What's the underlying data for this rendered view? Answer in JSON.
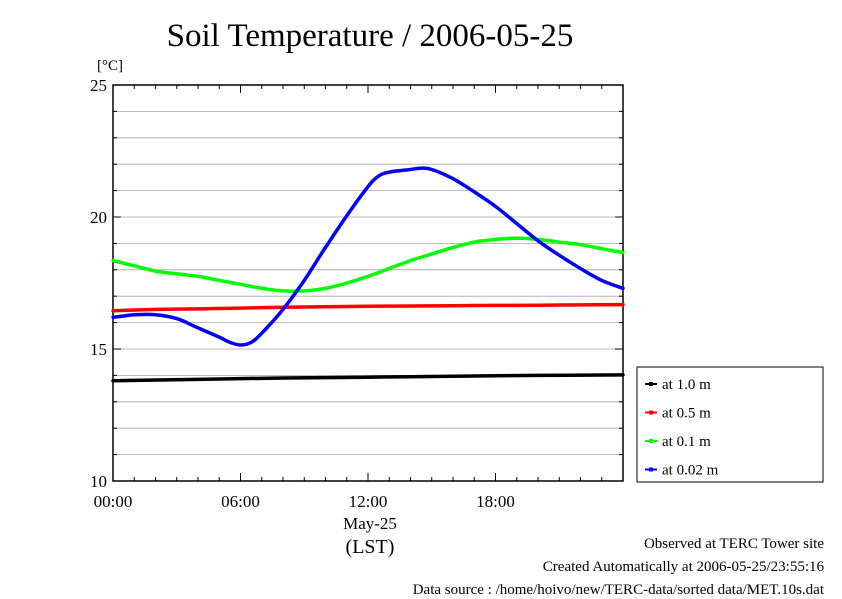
{
  "chart_data": {
    "type": "line",
    "title": "Soil Temperature / 2006-05-25",
    "ylabel": "[°C]",
    "xlabel": "(LST)",
    "x_date_label": "May-25",
    "xlim": [
      0,
      24
    ],
    "ylim": [
      10,
      25
    ],
    "y_ticks": [
      10,
      15,
      20,
      25
    ],
    "y_tick_labels": [
      "10",
      "15",
      "20",
      "25"
    ],
    "x_ticks": [
      0,
      6,
      12,
      18
    ],
    "x_tick_labels": [
      "00:00",
      "06:00",
      "12:00",
      "18:00"
    ],
    "grid": true,
    "legend_position": "right",
    "series": [
      {
        "name": "at 1.0 m",
        "color": "#000000",
        "x": [
          0,
          4,
          8,
          12,
          16,
          20,
          24
        ],
        "values": [
          13.8,
          13.85,
          13.9,
          13.93,
          13.97,
          14.0,
          14.02
        ]
      },
      {
        "name": "at 0.5 m",
        "color": "#ff0000",
        "x": [
          0,
          2,
          4,
          6,
          8,
          10,
          12,
          14,
          16,
          18,
          20,
          22,
          24
        ],
        "values": [
          16.45,
          16.5,
          16.52,
          16.55,
          16.58,
          16.6,
          16.62,
          16.63,
          16.64,
          16.65,
          16.66,
          16.67,
          16.68
        ]
      },
      {
        "name": "at 0.1 m",
        "color": "#00ff00",
        "x": [
          0,
          1,
          2,
          3,
          4,
          5,
          6,
          7,
          8,
          9,
          10,
          11,
          12,
          13,
          14,
          15,
          16,
          17,
          18,
          19,
          20,
          21,
          22,
          23,
          24
        ],
        "values": [
          18.35,
          18.15,
          17.95,
          17.85,
          17.75,
          17.6,
          17.45,
          17.3,
          17.2,
          17.2,
          17.3,
          17.5,
          17.75,
          18.05,
          18.35,
          18.6,
          18.85,
          19.05,
          19.15,
          19.2,
          19.15,
          19.05,
          18.95,
          18.8,
          18.65
        ]
      },
      {
        "name": "at 0.02 m",
        "color": "#0000ff",
        "x": [
          0,
          0.5,
          1,
          2,
          3,
          4,
          5,
          5.5,
          6,
          6.5,
          7,
          8,
          9,
          10,
          11,
          12,
          12.5,
          13,
          14,
          14.5,
          15,
          16,
          17,
          18,
          19,
          20,
          21,
          22,
          23,
          24
        ],
        "values": [
          16.2,
          16.25,
          16.3,
          16.3,
          16.15,
          15.8,
          15.45,
          15.25,
          15.15,
          15.25,
          15.6,
          16.5,
          17.6,
          18.85,
          20.05,
          21.15,
          21.55,
          21.7,
          21.8,
          21.85,
          21.8,
          21.45,
          20.95,
          20.4,
          19.75,
          19.1,
          18.55,
          18.05,
          17.6,
          17.3
        ]
      }
    ]
  },
  "footer": {
    "observed": "Observed at TERC Tower site",
    "created": "Created Automatically at 2006-05-25/23:55:16",
    "source": "Data source : /home/hoivo/new/TERC-data/sorted  data/MET.10s.dat"
  }
}
